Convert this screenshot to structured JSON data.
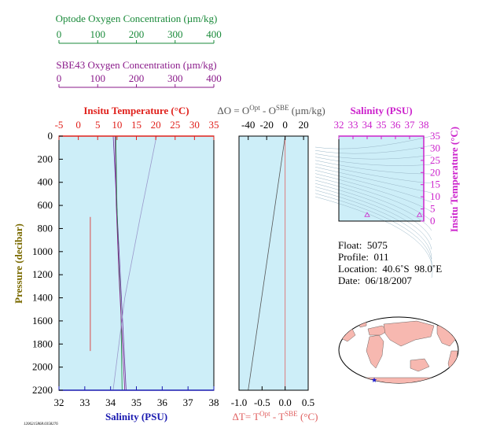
{
  "optode_axis": {
    "label": "Optode Oxygen Concentration (µm/kg)",
    "ticks": [
      0,
      100,
      200,
      300,
      400
    ],
    "color": "#1a8a3a"
  },
  "sbe43_axis": {
    "label": "SBE43 Oxygen Concentration (µm/kg)",
    "ticks": [
      0,
      100,
      200,
      300,
      400
    ],
    "color": "#8a1a8a"
  },
  "colors": {
    "temperature": "#e0201b",
    "salinity": "#1a1ab0",
    "pressure": "#7a6a00",
    "delta_o": "#555555",
    "delta_t": "#e06060",
    "ts_axis": "#cc22cc",
    "panel_bg": "#cdeef8"
  },
  "chart_data": [
    {
      "type": "line",
      "name": "profile-panel",
      "top_axis": {
        "label": "Insitu Temperature (°C)",
        "ticks": [
          -5,
          0,
          5,
          10,
          15,
          20,
          25,
          30,
          35
        ],
        "range": [
          -5,
          35
        ]
      },
      "bottom_axis": {
        "label": "Salinity (PSU)",
        "ticks": [
          32,
          33,
          34,
          35,
          36,
          37,
          38
        ],
        "range": [
          32,
          38
        ]
      },
      "y_axis": {
        "label": "Pressure (decibar)",
        "ticks": [
          0,
          200,
          400,
          600,
          800,
          1000,
          1200,
          1400,
          1600,
          1800,
          2000,
          2200
        ],
        "range": [
          0,
          2200
        ],
        "inverted": true
      },
      "series": [
        {
          "kind": "temperature",
          "axis": "top",
          "color": "#e0201b",
          "points": [
            [
              3.1,
              700
            ],
            [
              3.1,
              1000
            ],
            [
              3.1,
              1400
            ],
            [
              3.1,
              1860
            ]
          ]
        },
        {
          "kind": "salinity",
          "axis": "bottom",
          "color": "#6a2a9a",
          "points": [
            [
              34.1,
              0
            ],
            [
              34.6,
              2200
            ]
          ]
        },
        {
          "kind": "optode",
          "axis": "oxygen",
          "color": "#1a8a3a",
          "points": [
            [
              147,
              0
            ],
            [
              149,
              500
            ],
            [
              153,
              1000
            ],
            [
              160,
              1500
            ],
            [
              163,
              2200
            ]
          ]
        },
        {
          "kind": "sbe43",
          "axis": "oxygen",
          "color": "#8a1a8a",
          "points": [
            [
              145,
              0
            ],
            [
              148,
              600
            ],
            [
              155,
              1200
            ],
            [
              170,
              2200
            ]
          ]
        },
        {
          "kind": "temperature-upper",
          "axis": "top",
          "color": "#9a9acc",
          "points": [
            [
              20.2,
              0
            ],
            [
              16,
              700
            ],
            [
              12,
              1400
            ],
            [
              9,
              2200
            ]
          ]
        }
      ]
    },
    {
      "type": "line",
      "name": "delta-panel",
      "top_axis": {
        "label": "ΔO = O^Opt - O^SBE (µm/kg)",
        "ticks": [
          -40,
          -20,
          0,
          20
        ],
        "range": [
          -50,
          25
        ]
      },
      "bottom_axis": {
        "label": "ΔT= T^Opt - T^SBE (°C)",
        "ticks": [
          -1.0,
          -0.5,
          0.0,
          0.5
        ],
        "range": [
          -1.0,
          0.5
        ]
      },
      "y_range": [
        0,
        2200
      ],
      "series": [
        {
          "kind": "delta_o",
          "color": "#555555",
          "points": [
            [
              0,
              0
            ],
            [
              -40,
              2200
            ]
          ]
        },
        {
          "kind": "zero_line",
          "color": "#e06060",
          "points": [
            [
              0,
              0
            ],
            [
              0,
              2200
            ]
          ]
        }
      ]
    },
    {
      "type": "scatter",
      "name": "ts-panel",
      "top_axis": {
        "label": "Salinity (PSU)",
        "ticks": [
          32,
          33,
          34,
          35,
          36,
          37,
          38
        ],
        "range": [
          32,
          38
        ]
      },
      "right_axis": {
        "label": "Insitu Temperature (°C)",
        "ticks": [
          0,
          5,
          10,
          15,
          20,
          25,
          30,
          35
        ],
        "range": [
          0,
          35
        ]
      },
      "points": [
        [
          34.0,
          2.5
        ],
        [
          37.7,
          2.5
        ]
      ]
    }
  ],
  "float_info": {
    "float": "Float:  5075",
    "profile": "Profile:  011",
    "location": "Location:  40.6˚S  98.0˚E",
    "date": "Date:  06/18/2007"
  },
  "map": {
    "marker_label": "float-location"
  },
  "footer_stamp": "1206215868.0358276"
}
